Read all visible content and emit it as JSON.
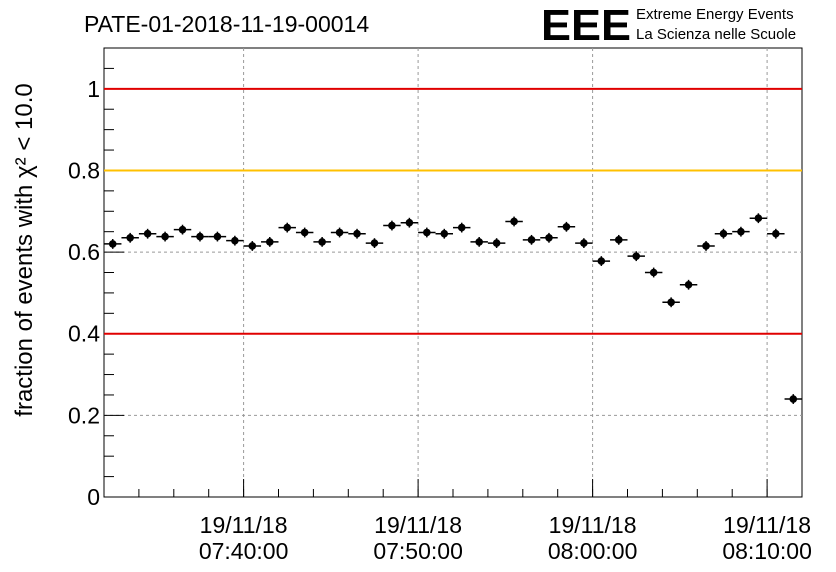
{
  "title": "PATE-01-2018-11-19-00014",
  "logo": {
    "mark": "EEE",
    "line1": "Extreme Energy Events",
    "line2": "La Scienza nelle Scuole",
    "color": "#1a1aff"
  },
  "chart_data": {
    "type": "scatter",
    "title": "PATE-01-2018-11-19-00014",
    "xlabel": "",
    "ylabel": "fraction of events with χ² < 10.0",
    "ylim": [
      0,
      1.1
    ],
    "xlim": [
      "2018-11-19 07:32:00",
      "2018-11-19 08:12:00"
    ],
    "grid": true,
    "y_ticks": [
      "0",
      "0.2",
      "0.4",
      "0.6",
      "0.8",
      "1"
    ],
    "x_ticks": [
      {
        "date": "19/11/18",
        "time": "07:40:00"
      },
      {
        "date": "19/11/18",
        "time": "07:50:00"
      },
      {
        "date": "19/11/18",
        "time": "08:00:00"
      },
      {
        "date": "19/11/18",
        "time": "08:10:00"
      }
    ],
    "reference_lines": [
      {
        "y": 1.0,
        "color": "#e00000"
      },
      {
        "y": 0.8,
        "color": "#ffc000"
      },
      {
        "y": 0.4,
        "color": "#e00000"
      }
    ],
    "series": [
      {
        "x": [
          "07:32:30",
          "07:33:30",
          "07:34:30",
          "07:35:30",
          "07:36:30",
          "07:37:30",
          "07:38:30",
          "07:39:30",
          "07:40:30",
          "07:41:30",
          "07:42:30",
          "07:43:30",
          "07:44:30",
          "07:45:30",
          "07:46:30",
          "07:47:30",
          "07:48:30",
          "07:49:30",
          "07:50:30",
          "07:51:30",
          "07:52:30",
          "07:53:30",
          "07:54:30",
          "07:55:30",
          "07:56:30",
          "07:57:30",
          "07:58:30",
          "07:59:30",
          "08:00:30",
          "08:01:30",
          "08:02:30",
          "08:03:30",
          "08:04:30",
          "08:05:30",
          "08:06:30",
          "08:07:30",
          "08:08:30",
          "08:09:30",
          "08:10:30",
          "08:11:30"
        ],
        "y": [
          0.62,
          0.635,
          0.645,
          0.638,
          0.655,
          0.638,
          0.638,
          0.628,
          0.615,
          0.625,
          0.66,
          0.648,
          0.625,
          0.648,
          0.645,
          0.622,
          0.665,
          0.672,
          0.648,
          0.645,
          0.66,
          0.625,
          0.622,
          0.675,
          0.63,
          0.635,
          0.662,
          0.622,
          0.578,
          0.63,
          0.59,
          0.55,
          0.477,
          0.52,
          0.615,
          0.645,
          0.65,
          0.683,
          0.645,
          0.24
        ],
        "y_error": 0.012
      }
    ]
  }
}
